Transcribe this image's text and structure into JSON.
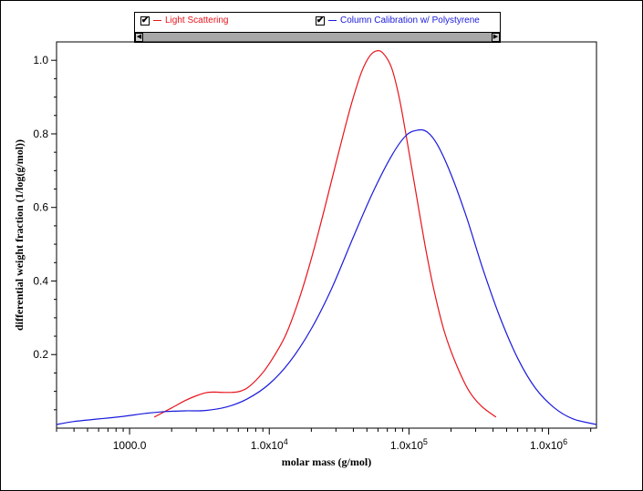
{
  "legend": {
    "items": [
      {
        "label": "Light Scattering",
        "color": "#e8141c",
        "checked": "✔"
      },
      {
        "label": "Column Calibration w/ Polystyrene",
        "color": "#1a1adc",
        "checked": "✔"
      }
    ]
  },
  "chart_data": {
    "type": "line",
    "xlabel": "molar mass (g/mol)",
    "ylabel": "differential weight fraction (1/log(g/mol))",
    "xscale": "log",
    "xlim": [
      300,
      2200000
    ],
    "ylim": [
      0,
      1.05
    ],
    "grid": false,
    "legend_position": "top",
    "xticks": [
      {
        "value": 1000,
        "label": "1000.0"
      },
      {
        "value": 10000,
        "label": "1.0x10",
        "exp": "4"
      },
      {
        "value": 100000,
        "label": "1.0x10",
        "exp": "5"
      },
      {
        "value": 1000000,
        "label": "1.0x10",
        "exp": "6"
      }
    ],
    "yticks": [
      {
        "value": 0.2,
        "label": "0.2"
      },
      {
        "value": 0.4,
        "label": "0.4"
      },
      {
        "value": 0.6,
        "label": "0.6"
      },
      {
        "value": 0.8,
        "label": "0.8"
      },
      {
        "value": 1.0,
        "label": "1.0"
      }
    ],
    "series": [
      {
        "name": "Light Scattering",
        "color": "#e8141c",
        "points": [
          [
            1500,
            0.03
          ],
          [
            2000,
            0.055
          ],
          [
            2500,
            0.075
          ],
          [
            3000,
            0.088
          ],
          [
            3500,
            0.096
          ],
          [
            4000,
            0.098
          ],
          [
            5000,
            0.097
          ],
          [
            6000,
            0.099
          ],
          [
            7000,
            0.11
          ],
          [
            8500,
            0.14
          ],
          [
            10000,
            0.175
          ],
          [
            13000,
            0.25
          ],
          [
            16000,
            0.34
          ],
          [
            20000,
            0.46
          ],
          [
            25000,
            0.6
          ],
          [
            30000,
            0.72
          ],
          [
            35000,
            0.82
          ],
          [
            40000,
            0.9
          ],
          [
            46000,
            0.97
          ],
          [
            52000,
            1.01
          ],
          [
            58000,
            1.025
          ],
          [
            65000,
            1.02
          ],
          [
            75000,
            0.98
          ],
          [
            85000,
            0.9
          ],
          [
            95000,
            0.8
          ],
          [
            110000,
            0.66
          ],
          [
            130000,
            0.5
          ],
          [
            150000,
            0.38
          ],
          [
            180000,
            0.26
          ],
          [
            220000,
            0.17
          ],
          [
            270000,
            0.1
          ],
          [
            330000,
            0.06
          ],
          [
            420000,
            0.03
          ]
        ]
      },
      {
        "name": "Column Calibration w/ Polystyrene",
        "color": "#1a1adc",
        "points": [
          [
            300,
            0.01
          ],
          [
            400,
            0.018
          ],
          [
            600,
            0.025
          ],
          [
            900,
            0.032
          ],
          [
            1300,
            0.04
          ],
          [
            1800,
            0.045
          ],
          [
            2500,
            0.047
          ],
          [
            3500,
            0.048
          ],
          [
            5000,
            0.058
          ],
          [
            7000,
            0.08
          ],
          [
            10000,
            0.12
          ],
          [
            14000,
            0.18
          ],
          [
            20000,
            0.27
          ],
          [
            28000,
            0.38
          ],
          [
            40000,
            0.52
          ],
          [
            55000,
            0.64
          ],
          [
            75000,
            0.74
          ],
          [
            95000,
            0.795
          ],
          [
            115000,
            0.81
          ],
          [
            135000,
            0.805
          ],
          [
            160000,
            0.77
          ],
          [
            200000,
            0.69
          ],
          [
            260000,
            0.57
          ],
          [
            340000,
            0.43
          ],
          [
            450000,
            0.3
          ],
          [
            600000,
            0.19
          ],
          [
            800000,
            0.11
          ],
          [
            1100000,
            0.055
          ],
          [
            1500000,
            0.025
          ],
          [
            2200000,
            0.01
          ]
        ]
      }
    ]
  }
}
